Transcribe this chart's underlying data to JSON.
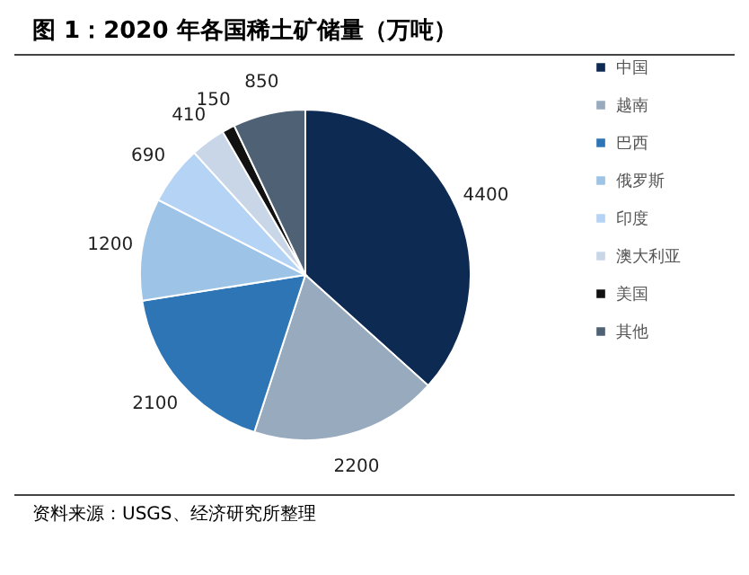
{
  "chart_data": {
    "type": "pie",
    "title": "图 1：2020 年各国稀土矿储量（万吨）",
    "categories": [
      "中国",
      "越南",
      "巴西",
      "俄罗斯",
      "印度",
      "澳大利亚",
      "美国",
      "其他"
    ],
    "values": [
      4400,
      2200,
      2100,
      1200,
      690,
      410,
      150,
      850
    ],
    "colors": [
      "#0d2a52",
      "#98abbe",
      "#2e75b6",
      "#9dc3e6",
      "#b4d3f5",
      "#c8d6e8",
      "#111111",
      "#4f6174"
    ],
    "data_labels": true,
    "legend": "right",
    "annotations": [
      "资料来源：USGS、经济研究所整理"
    ]
  }
}
